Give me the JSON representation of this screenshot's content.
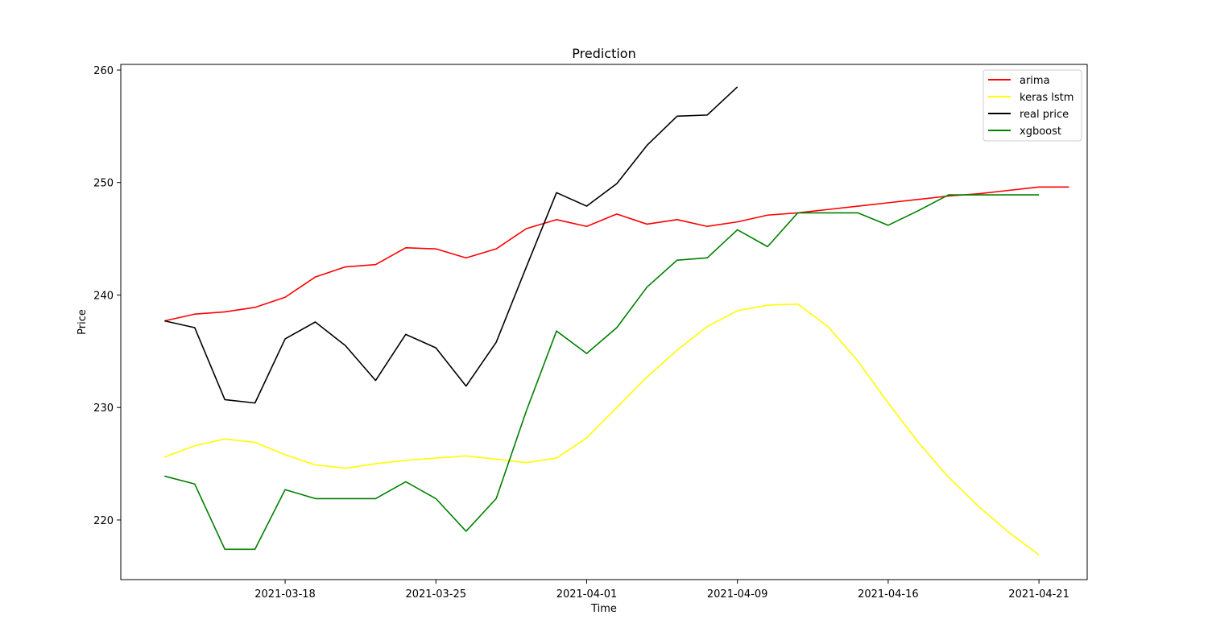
{
  "chart_data": {
    "type": "line",
    "title": "Prediction",
    "xlabel": "Time",
    "ylabel": "Price",
    "ylim": [
      214.7,
      260.5
    ],
    "yticks": [
      220,
      230,
      240,
      250,
      260
    ],
    "xticks": [
      "2021-03-18",
      "2021-03-25",
      "2021-04-01",
      "2021-04-09",
      "2021-04-16",
      "2021-04-21"
    ],
    "xtick_positions": [
      4,
      9,
      14,
      19,
      24,
      29
    ],
    "xlim": [
      -1.45,
      30.6
    ],
    "legend_position": "top-right",
    "grid": false,
    "series": [
      {
        "name": "arima",
        "color": "#ff0000",
        "x": [
          0,
          1,
          2,
          3,
          4,
          5,
          6,
          7,
          8,
          9,
          10,
          11,
          12,
          13,
          14,
          15,
          16,
          17,
          18,
          19,
          20,
          21,
          22,
          23,
          24,
          25,
          26,
          27,
          28,
          29,
          30
        ],
        "values": [
          237.7,
          238.3,
          238.5,
          238.9,
          239.8,
          241.6,
          242.5,
          242.7,
          244.2,
          244.1,
          243.3,
          244.1,
          245.9,
          246.7,
          246.1,
          247.2,
          246.3,
          246.7,
          246.1,
          246.5,
          247.1,
          247.3,
          247.6,
          247.9,
          248.2,
          248.5,
          248.8,
          249.0,
          249.3,
          249.6,
          249.6
        ]
      },
      {
        "name": "keras lstm",
        "color": "#ffff00",
        "x": [
          0,
          1,
          2,
          3,
          4,
          5,
          6,
          7,
          8,
          9,
          10,
          11,
          12,
          13,
          14,
          15,
          16,
          17,
          18,
          19,
          20,
          21,
          22,
          23,
          24,
          25,
          26,
          27,
          28,
          29
        ],
        "values": [
          225.6,
          226.6,
          227.2,
          226.9,
          225.8,
          224.9,
          224.6,
          225.0,
          225.3,
          225.5,
          225.7,
          225.4,
          225.1,
          225.5,
          227.3,
          230.0,
          232.7,
          235.1,
          237.2,
          238.6,
          239.1,
          239.2,
          237.2,
          234.1,
          230.4,
          226.9,
          223.8,
          221.2,
          218.9,
          216.9
        ]
      },
      {
        "name": "real price",
        "color": "#000000",
        "x": [
          0,
          1,
          2,
          3,
          4,
          5,
          6,
          7,
          8,
          9,
          10,
          11,
          12,
          13,
          14,
          15,
          16,
          17,
          18,
          19
        ],
        "values": [
          237.7,
          237.1,
          230.7,
          230.4,
          236.1,
          237.6,
          235.5,
          232.4,
          236.5,
          235.3,
          231.9,
          235.8,
          242.5,
          249.1,
          247.9,
          249.9,
          253.3,
          255.9,
          256.0,
          258.5
        ]
      },
      {
        "name": "xgboost",
        "color": "#008000",
        "x": [
          0,
          1,
          2,
          3,
          4,
          5,
          6,
          7,
          8,
          9,
          10,
          11,
          12,
          13,
          14,
          15,
          16,
          17,
          18,
          19,
          20,
          21,
          22,
          23,
          24,
          25,
          26,
          27,
          28,
          29
        ],
        "values": [
          223.9,
          223.2,
          217.4,
          217.4,
          222.7,
          221.9,
          221.9,
          221.9,
          223.4,
          221.9,
          219.0,
          221.9,
          229.7,
          236.8,
          234.8,
          237.1,
          240.7,
          243.1,
          243.3,
          245.8,
          244.3,
          247.3,
          247.3,
          247.3,
          246.2,
          247.5,
          248.9,
          248.9,
          248.9,
          248.9
        ]
      }
    ]
  }
}
